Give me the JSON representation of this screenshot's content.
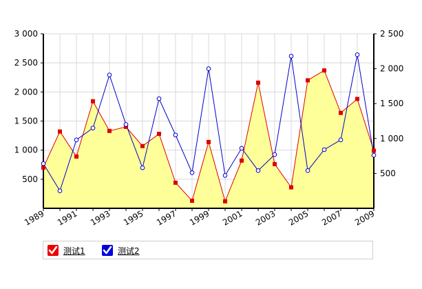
{
  "chart_data": {
    "type": "line",
    "x": [
      "1989",
      "1990",
      "1991",
      "1992",
      "1993",
      "1994",
      "1995",
      "1996",
      "1997",
      "1998",
      "1999",
      "2000",
      "2001",
      "2002",
      "2003",
      "2004",
      "2005",
      "2006",
      "2007",
      "2008",
      "2009"
    ],
    "x_tick_labels": [
      "1989",
      "1991",
      "1993",
      "1995",
      "1997",
      "1999",
      "2001",
      "2003",
      "2005",
      "2007",
      "2009"
    ],
    "left_axis": {
      "ylim": [
        0,
        3000
      ],
      "ticks": [
        500,
        1000,
        1500,
        2000,
        2500,
        3000
      ],
      "tick_labels": [
        "500",
        "1 000",
        "1 500",
        "2 000",
        "2 500",
        "3 000"
      ]
    },
    "right_axis": {
      "ylim": [
        0,
        2500
      ],
      "ticks": [
        500,
        1000,
        1500,
        2000,
        2500
      ],
      "tick_labels": [
        "500",
        "1 000",
        "1 500",
        "2 000",
        "2 500"
      ]
    },
    "grid": true,
    "legend_position": "bottom",
    "series": [
      {
        "name": "测试1",
        "axis": "left",
        "style": "area",
        "color": "#dd0000",
        "fill": "#ffff99",
        "marker": "square",
        "values": [
          700,
          1320,
          890,
          1840,
          1330,
          1400,
          1070,
          1280,
          440,
          130,
          1140,
          120,
          820,
          2160,
          760,
          360,
          2200,
          2370,
          1640,
          1880,
          990
        ]
      },
      {
        "name": "测试2",
        "axis": "right",
        "style": "line",
        "color": "#0000cc",
        "marker": "circle",
        "values": [
          640,
          250,
          980,
          1150,
          1910,
          1200,
          580,
          1570,
          1050,
          510,
          2000,
          470,
          860,
          540,
          770,
          2180,
          540,
          840,
          980,
          2200,
          760
        ]
      }
    ]
  },
  "legend": {
    "items": [
      {
        "label": "测试1",
        "color": "#ee0000"
      },
      {
        "label": "测试2",
        "color": "#0000dd"
      }
    ]
  }
}
